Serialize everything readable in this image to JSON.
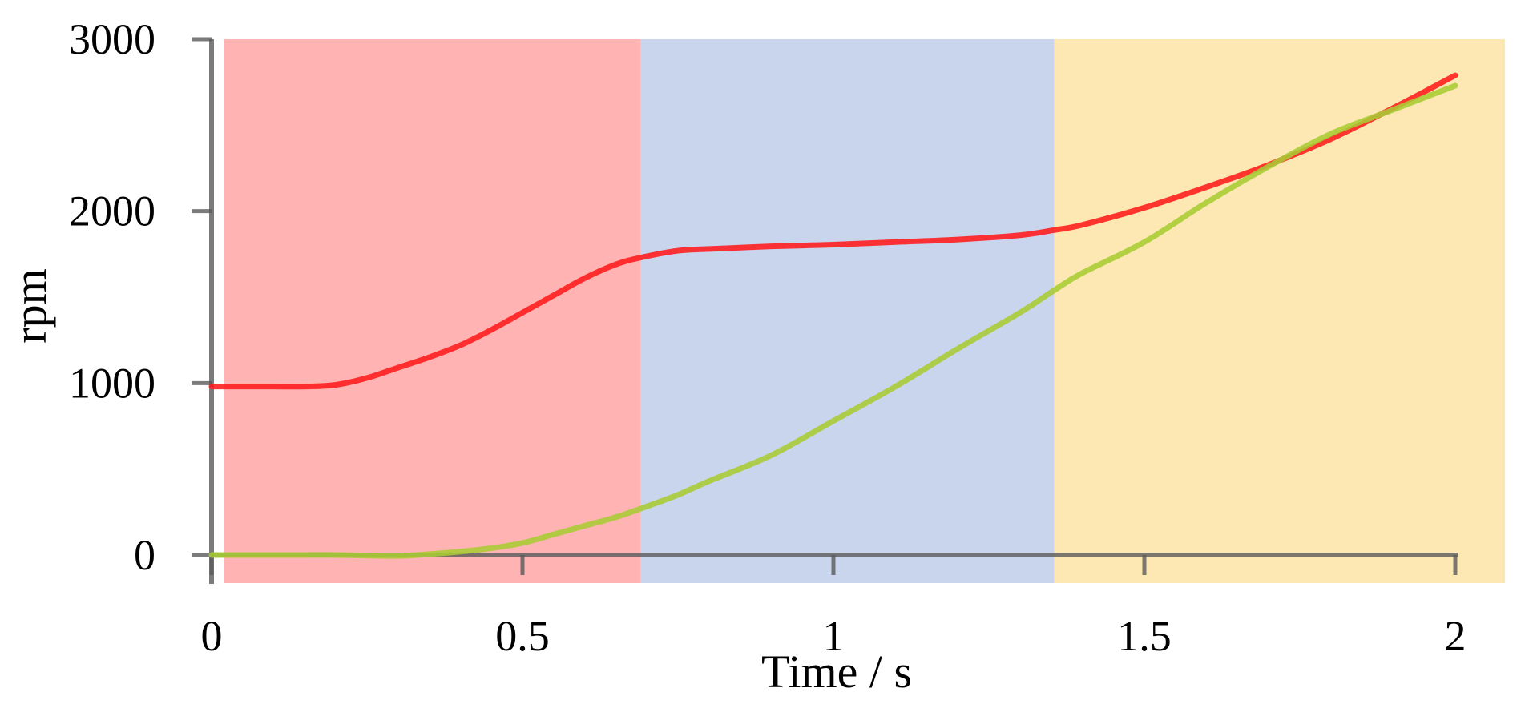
{
  "chart_data": {
    "type": "line",
    "title": "",
    "xlabel": "Time / s",
    "ylabel": "rpm",
    "xlim": [
      0,
      2
    ],
    "ylim": [
      0,
      3000
    ],
    "x_ticks": [
      0,
      0.5,
      1,
      1.5,
      2
    ],
    "x_tick_labels": [
      "0",
      "0.5",
      "1",
      "1.5",
      "2"
    ],
    "y_ticks": [
      0,
      1000,
      2000,
      3000
    ],
    "y_tick_labels": [
      "0",
      "1000",
      "2000",
      "3000"
    ],
    "grid": false,
    "legend": "none",
    "regions": [
      {
        "x": [
          0.02,
          0.69
        ],
        "color": "#ffb3b3"
      },
      {
        "x": [
          0.69,
          1.355
        ],
        "color": "#c9d5ec"
      },
      {
        "x": [
          1.355,
          2.08
        ],
        "color": "#fde8b3"
      }
    ],
    "series": [
      {
        "color": "#ff1a1a",
        "x": [
          0,
          0.05,
          0.1,
          0.15,
          0.2,
          0.25,
          0.3,
          0.35,
          0.4,
          0.45,
          0.5,
          0.55,
          0.6,
          0.65,
          0.69,
          0.75,
          0.8,
          0.9,
          1.0,
          1.1,
          1.2,
          1.3,
          1.355,
          1.4,
          1.5,
          1.6,
          1.7,
          1.8,
          1.9,
          2.0
        ],
        "y": [
          980,
          980,
          980,
          980,
          990,
          1030,
          1090,
          1150,
          1220,
          1310,
          1410,
          1510,
          1610,
          1690,
          1730,
          1770,
          1780,
          1795,
          1805,
          1820,
          1835,
          1860,
          1890,
          1920,
          2020,
          2140,
          2270,
          2420,
          2600,
          2790
        ]
      },
      {
        "color": "#a8cc33",
        "x": [
          0,
          0.1,
          0.2,
          0.3,
          0.35,
          0.4,
          0.45,
          0.5,
          0.55,
          0.6,
          0.65,
          0.69,
          0.75,
          0.8,
          0.9,
          1.0,
          1.1,
          1.2,
          1.3,
          1.355,
          1.4,
          1.5,
          1.6,
          1.7,
          1.8,
          1.9,
          2.0
        ],
        "y": [
          0,
          0,
          0,
          -5,
          5,
          20,
          40,
          70,
          120,
          170,
          220,
          270,
          350,
          430,
          580,
          780,
          980,
          1200,
          1410,
          1540,
          1640,
          1820,
          2050,
          2260,
          2450,
          2590,
          2730
        ]
      }
    ]
  }
}
